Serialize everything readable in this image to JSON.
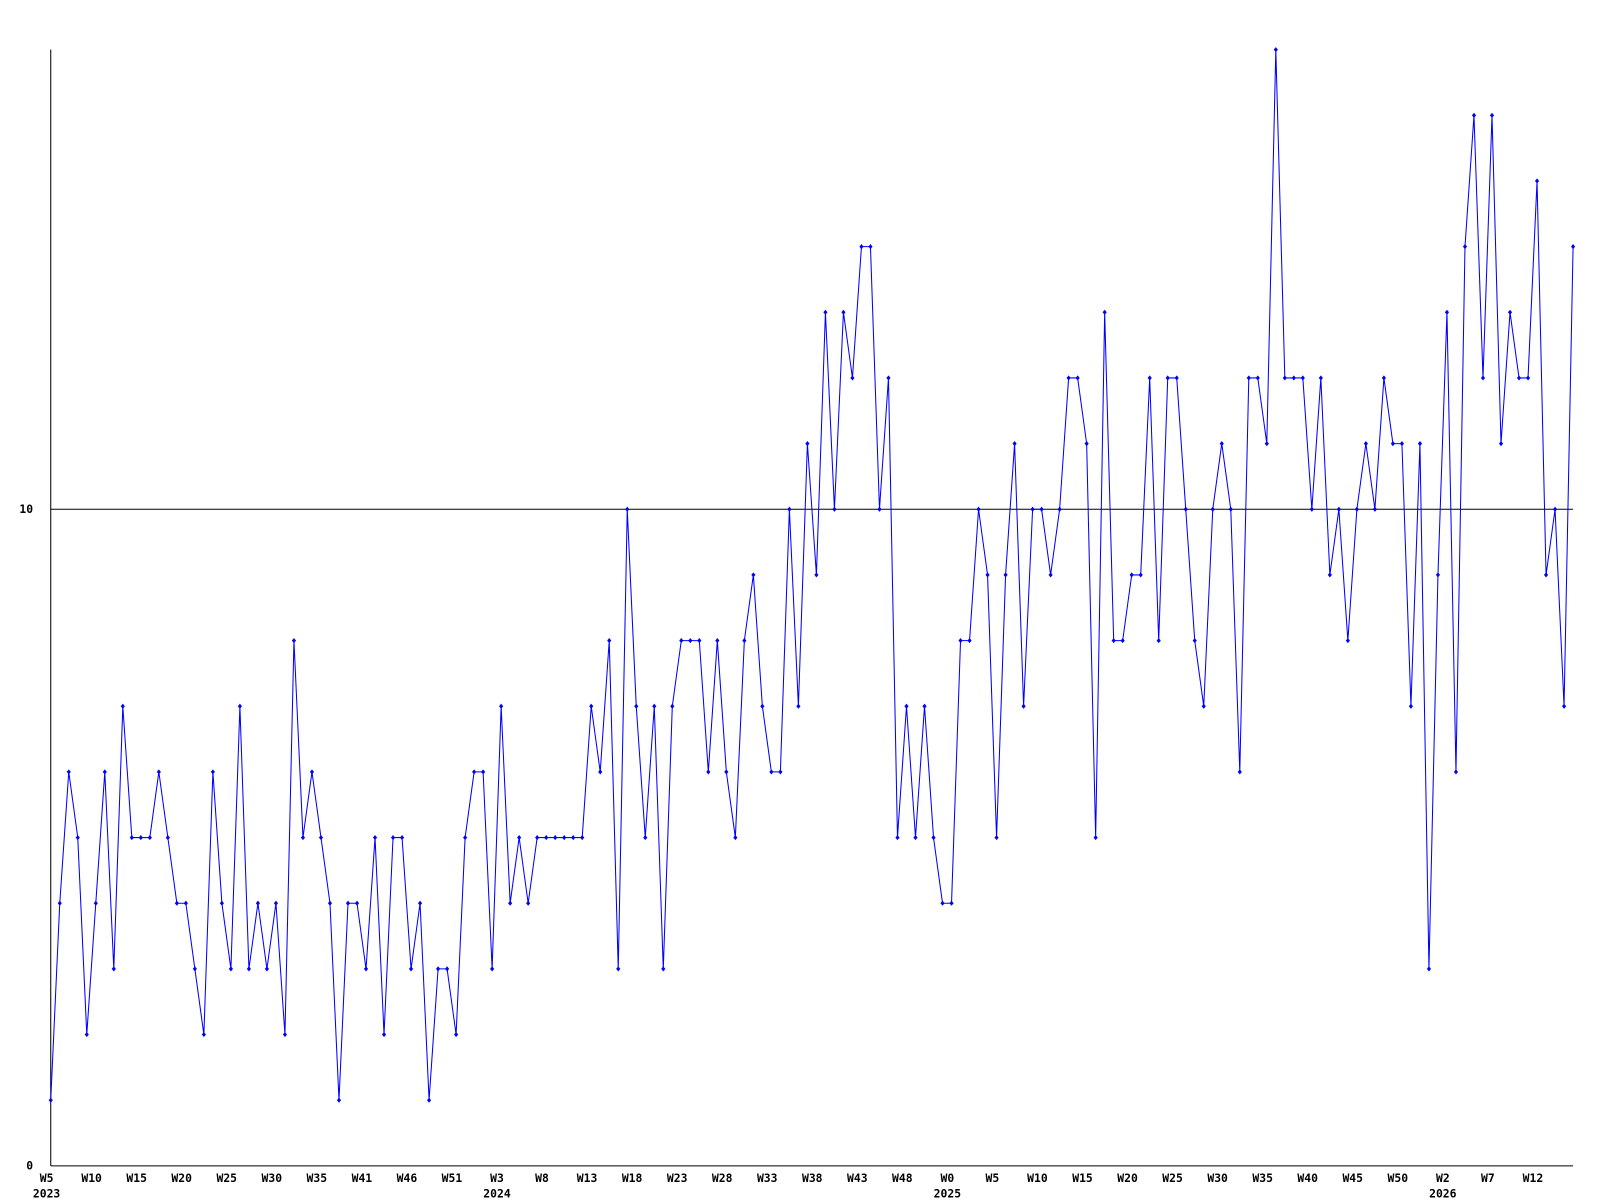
{
  "chart_data": {
    "type": "line",
    "categories": [
      "W5",
      null,
      null,
      null,
      null,
      "W10",
      null,
      null,
      null,
      null,
      "W15",
      null,
      null,
      null,
      null,
      "W20",
      null,
      null,
      null,
      null,
      "W25",
      null,
      null,
      null,
      null,
      "W30",
      null,
      null,
      null,
      null,
      "W35",
      null,
      null,
      null,
      null,
      "W41",
      null,
      null,
      null,
      null,
      "W46",
      null,
      null,
      null,
      null,
      "W51",
      null,
      null,
      null,
      null,
      "W3",
      null,
      null,
      null,
      null,
      "W8",
      null,
      null,
      null,
      null,
      "W13",
      null,
      null,
      null,
      null,
      "W18",
      null,
      null,
      null,
      null,
      "W23",
      null,
      null,
      null,
      null,
      "W28",
      null,
      null,
      null,
      null,
      "W33",
      null,
      null,
      null,
      null,
      "W38",
      null,
      null,
      null,
      null,
      "W43",
      null,
      null,
      null,
      null,
      "W48",
      null,
      null,
      null,
      null,
      "W0",
      null,
      null,
      null,
      null,
      "W5",
      null,
      null,
      null,
      null,
      "W10",
      null,
      null,
      null,
      null,
      "W15",
      null,
      null,
      null,
      null,
      "W20",
      null,
      null,
      null,
      null,
      "W25",
      null,
      null,
      null,
      null,
      "W30",
      null,
      null,
      null,
      null,
      "W35",
      null,
      null,
      null,
      null,
      "W40",
      null,
      null,
      null,
      null,
      "W45",
      null,
      null,
      null,
      null,
      "W50",
      null,
      null,
      null,
      null,
      "W2",
      null,
      null,
      null,
      null,
      "W7",
      null,
      null,
      null,
      null,
      "W12",
      null,
      null,
      null,
      null
    ],
    "category_years": [
      "2023",
      null,
      null,
      null,
      null,
      null,
      null,
      null,
      null,
      null,
      null,
      null,
      null,
      null,
      null,
      null,
      null,
      null,
      null,
      null,
      null,
      null,
      null,
      null,
      null,
      null,
      null,
      null,
      null,
      null,
      null,
      null,
      null,
      null,
      null,
      null,
      null,
      null,
      null,
      null,
      null,
      null,
      null,
      null,
      null,
      null,
      null,
      null,
      null,
      null,
      "2024",
      null,
      null,
      null,
      null,
      null,
      null,
      null,
      null,
      null,
      null,
      null,
      null,
      null,
      null,
      null,
      null,
      null,
      null,
      null,
      null,
      null,
      null,
      null,
      null,
      null,
      null,
      null,
      null,
      null,
      null,
      null,
      null,
      null,
      null,
      null,
      null,
      null,
      null,
      null,
      null,
      null,
      null,
      null,
      null,
      null,
      null,
      null,
      null,
      null,
      "2025",
      null,
      null,
      null,
      null,
      null,
      null,
      null,
      null,
      null,
      null,
      null,
      null,
      null,
      null,
      null,
      null,
      null,
      null,
      null,
      null,
      null,
      null,
      null,
      null,
      null,
      null,
      null,
      null,
      null,
      null,
      null,
      null,
      null,
      null,
      null,
      null,
      null,
      null,
      null,
      null,
      null,
      null,
      null,
      null,
      null,
      null,
      null,
      null,
      null,
      null,
      null,
      null,
      null,
      null,
      "2026",
      null,
      null,
      null,
      null,
      null,
      null,
      null,
      null,
      null,
      null,
      null,
      null,
      null,
      null
    ],
    "series": [
      {
        "color": "#0000ff",
        "values": [
          1,
          4,
          6,
          5,
          2,
          4,
          6,
          3,
          7,
          5,
          5,
          5,
          6,
          5,
          4,
          4,
          3,
          2,
          6,
          4,
          3,
          7,
          3,
          4,
          3,
          4,
          2,
          8,
          5,
          6,
          5,
          4,
          1,
          4,
          4,
          3,
          5,
          2,
          5,
          5,
          3,
          4,
          1,
          3,
          3,
          2,
          5,
          6,
          6,
          3,
          7,
          4,
          5,
          4,
          5,
          5,
          5,
          5,
          5,
          5,
          7,
          6,
          8,
          3,
          10,
          7,
          5,
          7,
          3,
          7,
          8,
          8,
          8,
          6,
          8,
          6,
          5,
          8,
          9,
          7,
          6,
          6,
          10,
          7,
          11,
          9,
          13,
          10,
          13,
          12,
          14,
          14,
          10,
          12,
          5,
          7,
          5,
          7,
          5,
          4,
          4,
          8,
          8,
          10,
          9,
          5,
          9,
          11,
          7,
          10,
          10,
          9,
          10,
          12,
          12,
          11,
          5,
          13,
          8,
          8,
          9,
          9,
          12,
          8,
          12,
          12,
          10,
          8,
          7,
          10,
          11,
          10,
          6,
          12,
          12,
          11,
          17,
          12,
          12,
          12,
          10,
          12,
          9,
          10,
          8,
          10,
          11,
          10,
          12,
          11,
          11,
          7,
          11,
          3,
          9,
          13,
          6,
          14,
          16,
          12,
          16,
          11,
          13,
          12,
          12,
          15,
          9,
          10,
          7,
          14
        ]
      }
    ],
    "ylim": [
      0,
      17
    ],
    "yticks": [
      0,
      10
    ],
    "grid": true
  }
}
